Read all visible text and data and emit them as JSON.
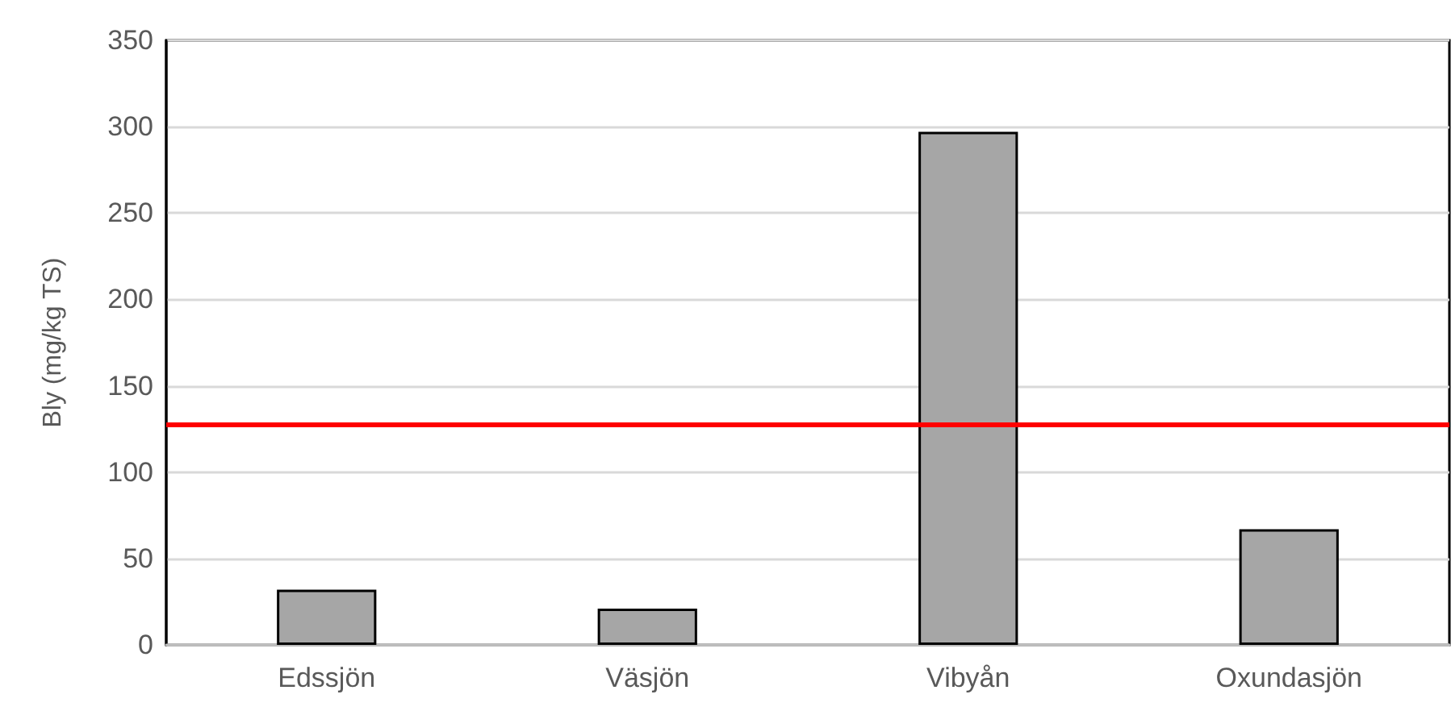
{
  "chart_data": {
    "type": "bar",
    "ylabel": "Bly (mg/kg TS)",
    "categories": [
      "Edssjön",
      "Väsjön",
      "Vibyån",
      "Oxundasjön"
    ],
    "values": [
      32,
      21,
      297,
      67
    ],
    "color": "#a6a6a6",
    "ylim": [
      0,
      350
    ],
    "yticks": [
      0,
      50,
      100,
      150,
      200,
      250,
      300,
      350
    ],
    "grid": "y",
    "ref_lines": [
      {
        "axis": "y",
        "value": 128,
        "color": "#ff0000"
      }
    ]
  }
}
